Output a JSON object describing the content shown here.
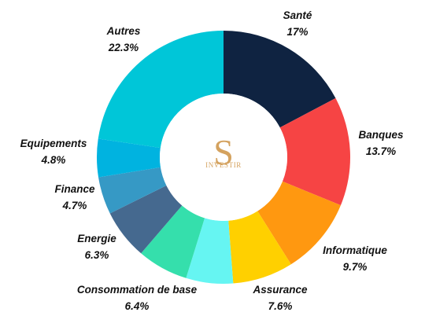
{
  "chart_data": {
    "type": "pie",
    "donut": true,
    "title": "",
    "slices": [
      {
        "name": "Santé",
        "value": 17,
        "label": "17%",
        "color": "#0f2341"
      },
      {
        "name": "Banques",
        "value": 13.7,
        "label": "13.7%",
        "color": "#f64444"
      },
      {
        "name": "Informatique",
        "value": 9.7,
        "label": "9.7%",
        "color": "#ff9810"
      },
      {
        "name": "Assurance",
        "value": 7.6,
        "label": "7.6%",
        "color": "#ffd000"
      },
      {
        "name": "",
        "value": 5.9,
        "label": "",
        "color": "#66f5f2"
      },
      {
        "name": "Consommation de base",
        "value": 6.4,
        "label": "6.4%",
        "color": "#35dfac"
      },
      {
        "name": "Energie",
        "value": 6.3,
        "label": "6.3%",
        "color": "#45698f"
      },
      {
        "name": "Finance",
        "value": 4.7,
        "label": "4.7%",
        "color": "#3699c5"
      },
      {
        "name": "Equipements",
        "value": 4.8,
        "label": "4.8%",
        "color": "#00b3e0"
      },
      {
        "name": "Autres",
        "value": 22.3,
        "label": "22.3%",
        "color": "#00c6d8"
      }
    ]
  },
  "logo": {
    "letter": "S",
    "text": "INVESTIR",
    "color": "#d4a25f"
  }
}
